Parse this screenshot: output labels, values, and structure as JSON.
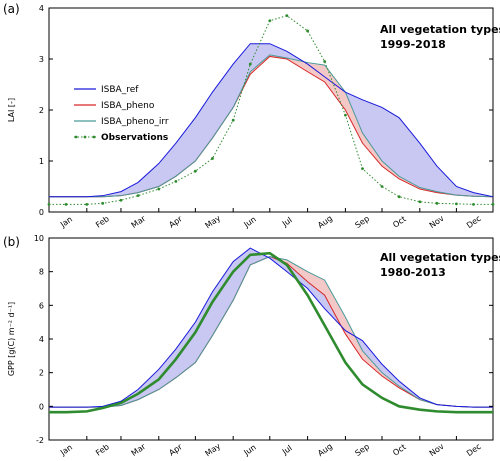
{
  "chart_data": [
    {
      "type": "line",
      "panel_label": "(a)",
      "ylabel": "LAI [-]",
      "xlabel": "",
      "ylim": [
        0,
        4
      ],
      "yticks": [
        0,
        1,
        2,
        3,
        4
      ],
      "x_tick_labels": [
        "Jan",
        "Feb",
        "Mar",
        "Apr",
        "May",
        "Jun",
        "Jul",
        "Aug",
        "Sep",
        "Oct",
        "Nov",
        "Dec"
      ],
      "annotation": [
        "All vegetation types",
        "1999-2018"
      ],
      "legend_position": "center-left",
      "colors": {
        "ISBA_ref": "#1a1adc",
        "ISBA_pheno": "#d62728",
        "ISBA_pheno_irr": "#4a9a9a",
        "Observations": "#2e8b2e",
        "fill_blue": "#c8c8f2",
        "fill_red": "#f5c8c8"
      },
      "x": [
        1,
        15,
        32,
        45,
        60,
        74,
        91,
        105,
        121,
        135,
        152,
        166,
        182,
        196,
        213,
        227,
        244,
        258,
        274,
        288,
        305,
        319,
        335,
        349,
        365
      ],
      "series": [
        {
          "name": "ISBA_ref",
          "values": [
            0.3,
            0.3,
            0.3,
            0.32,
            0.4,
            0.58,
            0.95,
            1.35,
            1.85,
            2.35,
            2.9,
            3.3,
            3.3,
            3.15,
            2.9,
            2.65,
            2.35,
            2.2,
            2.05,
            1.85,
            1.35,
            0.9,
            0.5,
            0.38,
            0.3
          ]
        },
        {
          "name": "ISBA_pheno",
          "values": [
            0.3,
            0.3,
            0.3,
            0.3,
            0.32,
            0.38,
            0.5,
            0.7,
            1.0,
            1.45,
            2.05,
            2.7,
            3.05,
            3.0,
            2.75,
            2.55,
            2.0,
            1.35,
            0.9,
            0.65,
            0.45,
            0.38,
            0.33,
            0.31,
            0.3
          ]
        },
        {
          "name": "ISBA_pheno_irr",
          "values": [
            0.3,
            0.3,
            0.3,
            0.3,
            0.32,
            0.38,
            0.5,
            0.7,
            1.0,
            1.45,
            2.05,
            2.75,
            3.08,
            3.02,
            2.93,
            2.88,
            2.35,
            1.55,
            1.0,
            0.7,
            0.48,
            0.4,
            0.33,
            0.31,
            0.3
          ]
        },
        {
          "name": "Observations",
          "values": [
            0.15,
            0.15,
            0.15,
            0.17,
            0.23,
            0.32,
            0.45,
            0.6,
            0.8,
            1.05,
            1.8,
            2.9,
            3.75,
            3.85,
            3.55,
            2.95,
            1.9,
            0.85,
            0.5,
            0.3,
            0.2,
            0.17,
            0.16,
            0.15,
            0.15
          ]
        }
      ]
    },
    {
      "type": "line",
      "panel_label": "(b)",
      "ylabel": "GPP [g(C) m⁻² d⁻¹]",
      "xlabel": "",
      "ylim": [
        -2,
        10
      ],
      "yticks": [
        -2,
        0,
        2,
        4,
        6,
        8,
        10
      ],
      "x_tick_labels": [
        "Jan",
        "Feb",
        "Mar",
        "Apr",
        "May",
        "Jun",
        "Jul",
        "Aug",
        "Sep",
        "Oct",
        "Nov",
        "Dec"
      ],
      "annotation": [
        "All vegetation types",
        "1980-2013"
      ],
      "colors": {
        "ISBA_ref": "#1a1adc",
        "ISBA_pheno": "#d62728",
        "ISBA_pheno_irr": "#4a9a9a",
        "Observations": "#2e8b2e",
        "fill_blue": "#c8c8f2",
        "fill_red": "#f5c8c8"
      },
      "x": [
        1,
        15,
        32,
        45,
        60,
        74,
        91,
        105,
        121,
        135,
        152,
        166,
        182,
        196,
        213,
        227,
        244,
        258,
        274,
        288,
        305,
        319,
        335,
        349,
        365
      ],
      "series": [
        {
          "name": "ISBA_ref",
          "values": [
            -0.05,
            -0.05,
            -0.05,
            0.0,
            0.3,
            1.0,
            2.2,
            3.4,
            5.0,
            6.8,
            8.6,
            9.4,
            8.8,
            8.0,
            7.0,
            5.8,
            4.5,
            3.9,
            2.5,
            1.5,
            0.5,
            0.1,
            0.0,
            -0.05,
            -0.05
          ]
        },
        {
          "name": "ISBA_pheno",
          "values": [
            -0.05,
            -0.05,
            -0.05,
            -0.05,
            0.05,
            0.4,
            1.0,
            1.7,
            2.6,
            4.2,
            6.3,
            8.4,
            8.9,
            8.5,
            7.4,
            6.6,
            4.3,
            2.8,
            1.8,
            1.1,
            0.4,
            0.1,
            0.0,
            -0.05,
            -0.05
          ]
        },
        {
          "name": "ISBA_pheno_irr",
          "values": [
            -0.05,
            -0.05,
            -0.05,
            -0.05,
            0.05,
            0.4,
            1.0,
            1.7,
            2.6,
            4.2,
            6.3,
            8.4,
            8.9,
            8.7,
            8.0,
            7.5,
            5.3,
            3.3,
            2.0,
            1.2,
            0.4,
            0.1,
            0.0,
            -0.05,
            -0.05
          ]
        },
        {
          "name": "Observations",
          "values": [
            -0.35,
            -0.35,
            -0.3,
            -0.1,
            0.2,
            0.75,
            1.6,
            2.8,
            4.4,
            6.2,
            8.0,
            9.0,
            9.1,
            8.4,
            6.6,
            4.8,
            2.6,
            1.3,
            0.5,
            0.0,
            -0.2,
            -0.3,
            -0.35,
            -0.35,
            -0.35
          ]
        }
      ]
    }
  ]
}
